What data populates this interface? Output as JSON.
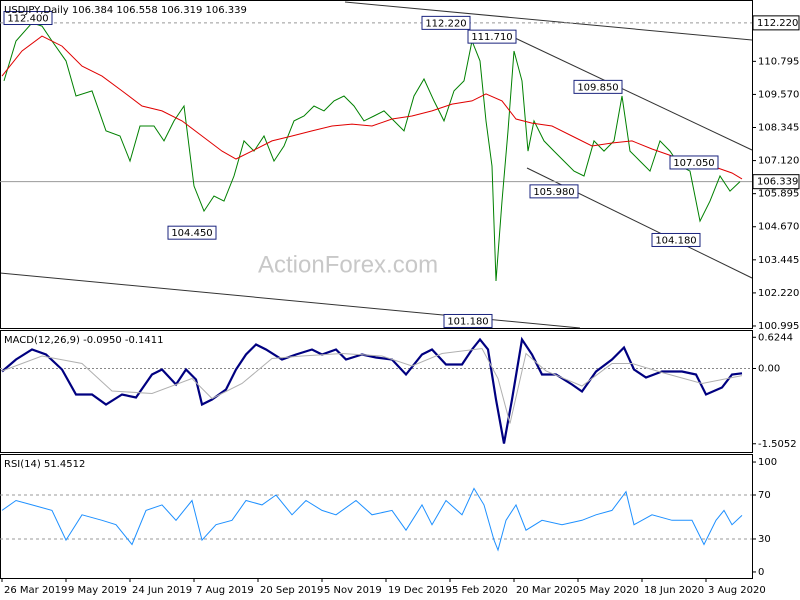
{
  "watermark": "ActionForex.com",
  "chart_data": [
    {
      "type": "line",
      "title": "USDJPY,Daily  106.384 106.558 106.319 106.339",
      "xlim": [
        -1,
        375
      ],
      "ylim": [
        100.92,
        113.03
      ],
      "yticks": [
        110.795,
        {
          "value": 109.57,
          "label": "109.570"
        },
        108.345,
        {
          "value": 107.12,
          "label": "107.120"
        },
        105.895,
        {
          "value": 104.67,
          "label": "104.670"
        },
        103.445,
        {
          "value": 102.22,
          "label": "102.220"
        },
        100.995
      ],
      "hlines": [
        {
          "value": 112.22,
          "label": "112.220",
          "style": "dashed"
        },
        {
          "value": 106.339,
          "label": "106.339",
          "style": "solid"
        }
      ],
      "annotations": [
        {
          "label": "112.400",
          "value": 112.4,
          "x": 13
        },
        {
          "label": "104.450",
          "value": 104.45,
          "x": 95
        },
        {
          "label": "112.220",
          "value": 112.22,
          "x": 222
        },
        {
          "label": "111.710",
          "value": 111.71,
          "x": 245
        },
        {
          "label": "101.180",
          "value": 101.18,
          "x": 233
        },
        {
          "label": "109.850",
          "value": 109.85,
          "x": 298
        },
        {
          "label": "105.980",
          "value": 105.98,
          "x": 276
        },
        {
          "label": "107.050",
          "value": 107.05,
          "x": 346
        },
        {
          "label": "104.180",
          "value": 104.18,
          "x": 337
        }
      ],
      "series": [
        {
          "color": "#008000",
          "x": [
            1,
            7,
            15,
            20,
            25,
            32,
            37,
            45,
            52,
            59,
            64,
            69,
            76,
            81,
            86,
            91,
            96,
            101,
            106,
            111,
            116,
            121,
            126,
            131,
            136,
            141,
            146,
            151,
            156,
            161,
            166,
            171,
            176,
            181,
            186,
            191,
            196,
            201,
            206,
            211,
            216,
            221,
            226,
            231,
            235,
            239,
            242,
            245,
            247,
            250,
            253,
            256,
            260,
            263,
            266,
            271,
            276,
            281,
            286,
            291,
            296,
            301,
            306,
            310,
            314,
            319,
            324,
            329,
            334,
            339,
            344,
            349,
            354,
            359,
            364,
            369
          ],
          "values": [
            110.07,
            111.55,
            112.22,
            112.1,
            111.55,
            110.81,
            109.51,
            109.7,
            108.22,
            108.03,
            107.1,
            108.4,
            108.4,
            107.85,
            108.59,
            109.14,
            106.18,
            105.25,
            105.81,
            105.62,
            106.55,
            107.85,
            107.47,
            108.03,
            107.1,
            107.66,
            108.59,
            108.77,
            109.14,
            108.96,
            109.33,
            109.51,
            109.14,
            108.59,
            108.77,
            108.96,
            108.59,
            108.22,
            109.51,
            110.14,
            109.33,
            108.59,
            109.7,
            110.07,
            111.55,
            110.81,
            108.59,
            106.92,
            102.66,
            105.62,
            108.22,
            111.18,
            110.07,
            107.47,
            108.59,
            107.85,
            107.47,
            107.1,
            106.73,
            106.55,
            107.85,
            107.47,
            107.85,
            109.51,
            107.47,
            107.1,
            106.73,
            107.85,
            107.47,
            106.92,
            106.73,
            104.88,
            105.62,
            106.55,
            105.99,
            106.34
          ]
        },
        {
          "color": "#e00000",
          "x": [
            0,
            10,
            20,
            30,
            40,
            50,
            60,
            70,
            80,
            90,
            100,
            110,
            117,
            125,
            135,
            145,
            155,
            165,
            175,
            185,
            195,
            205,
            215,
            225,
            235,
            242,
            250,
            257,
            265,
            275,
            285,
            295,
            305,
            315,
            325,
            335,
            345,
            355,
            365,
            370
          ],
          "values": [
            110.25,
            111.18,
            111.73,
            111.36,
            110.62,
            110.25,
            109.7,
            109.14,
            108.96,
            108.59,
            108.03,
            107.47,
            107.18,
            107.47,
            107.85,
            108.03,
            108.22,
            108.4,
            108.47,
            108.4,
            108.66,
            108.77,
            108.96,
            109.21,
            109.33,
            109.59,
            109.33,
            108.66,
            108.51,
            108.4,
            108.03,
            107.66,
            107.77,
            107.85,
            107.55,
            107.29,
            107.1,
            106.92,
            106.66,
            106.44
          ]
        }
      ]
    },
    {
      "type": "line",
      "title": "MACD(12,26,9) -0.0950 -0.1411",
      "xlim": [
        -1,
        375
      ],
      "ylim": [
        -1.67,
        0.75
      ],
      "yticks": [
        0.6244,
        {
          "value": 0,
          "label": "0.00"
        },
        -1.5052
      ],
      "series": [
        {
          "color": "#000080",
          "x": [
            0,
            7,
            15,
            22,
            30,
            37,
            45,
            52,
            60,
            67,
            75,
            80,
            87,
            92,
            97,
            100,
            105,
            112,
            117,
            122,
            127,
            132,
            140,
            147,
            155,
            160,
            167,
            172,
            180,
            187,
            195,
            202,
            210,
            215,
            222,
            230,
            235,
            239,
            243,
            247,
            251,
            255,
            260,
            265,
            270,
            277,
            285,
            290,
            297,
            305,
            311,
            316,
            322,
            330,
            340,
            347,
            352,
            360,
            365,
            370
          ],
          "values": [
            -0.06,
            0.18,
            0.38,
            0.28,
            -0.02,
            -0.52,
            -0.52,
            -0.72,
            -0.52,
            -0.58,
            -0.12,
            -0.02,
            -0.32,
            -0.02,
            -0.22,
            -0.72,
            -0.62,
            -0.42,
            -0.02,
            0.28,
            0.48,
            0.38,
            0.18,
            0.28,
            0.38,
            0.28,
            0.38,
            0.18,
            0.28,
            0.22,
            0.18,
            -0.12,
            0.28,
            0.38,
            0.08,
            0.08,
            0.38,
            0.58,
            0.38,
            -0.62,
            -1.5,
            -0.62,
            0.58,
            0.28,
            -0.12,
            -0.12,
            -0.32,
            -0.46,
            -0.06,
            0.18,
            0.42,
            -0.02,
            -0.18,
            -0.06,
            -0.06,
            -0.12,
            -0.52,
            -0.38,
            -0.12,
            -0.095
          ]
        },
        {
          "color": "#b0b0b0",
          "x": [
            0,
            20,
            40,
            55,
            75,
            95,
            105,
            120,
            135,
            150,
            170,
            190,
            205,
            220,
            240,
            248,
            254,
            262,
            272,
            290,
            305,
            315,
            330,
            350,
            370
          ],
          "values": [
            -0.05,
            0.25,
            0.1,
            -0.45,
            -0.5,
            -0.2,
            -0.6,
            -0.3,
            0.2,
            0.25,
            0.3,
            0.25,
            0.05,
            0.3,
            0.4,
            -0.2,
            -1.1,
            0.3,
            -0.05,
            -0.35,
            0.1,
            0.1,
            -0.08,
            -0.3,
            -0.1411
          ]
        }
      ]
    },
    {
      "type": "line",
      "title": "RSI(14) 51.4512",
      "xlim": [
        -1,
        375
      ],
      "ylim": [
        -5.5,
        106.4
      ],
      "yticks": [
        100,
        70,
        30,
        0
      ],
      "levels": [
        70,
        30
      ],
      "xticks": [
        {
          "value": 0,
          "label": "26 Mar 2019"
        },
        {
          "value": 32,
          "label": "9 May 2019"
        },
        {
          "value": 64,
          "label": "24 Jun 2019"
        },
        {
          "value": 96,
          "label": "7 Aug 2019"
        },
        {
          "value": 128,
          "label": "20 Sep 2019"
        },
        {
          "value": 160,
          "label": "5 Nov 2019"
        },
        {
          "value": 192,
          "label": "19 Dec 2019"
        },
        {
          "value": 224,
          "label": "5 Feb 2020"
        },
        {
          "value": 256,
          "label": "20 Mar 2020"
        },
        {
          "value": 288,
          "label": "5 May 2020"
        },
        {
          "value": 320,
          "label": "18 Jun 2020"
        },
        {
          "value": 352,
          "label": "3 Aug 2020"
        }
      ],
      "series": [
        {
          "color": "#1e90ff",
          "x": [
            0,
            7,
            15,
            25,
            32,
            40,
            50,
            57,
            65,
            72,
            80,
            87,
            95,
            100,
            107,
            115,
            122,
            130,
            137,
            145,
            152,
            160,
            167,
            177,
            185,
            195,
            202,
            210,
            215,
            222,
            230,
            236,
            241,
            246,
            248,
            252,
            257,
            262,
            270,
            280,
            290,
            297,
            305,
            312,
            316,
            325,
            335,
            345,
            351,
            357,
            361,
            365,
            370
          ],
          "values": [
            56,
            65,
            61,
            56,
            29,
            52,
            47,
            43,
            25,
            56,
            61,
            47,
            65,
            29,
            43,
            47,
            65,
            61,
            70,
            52,
            65,
            56,
            52,
            65,
            52,
            56,
            38,
            61,
            43,
            65,
            52,
            76,
            61,
            29,
            20,
            47,
            61,
            38,
            47,
            43,
            47,
            52,
            56,
            73,
            43,
            52,
            47,
            47,
            25,
            47,
            56,
            43,
            51.4512
          ]
        }
      ]
    }
  ]
}
